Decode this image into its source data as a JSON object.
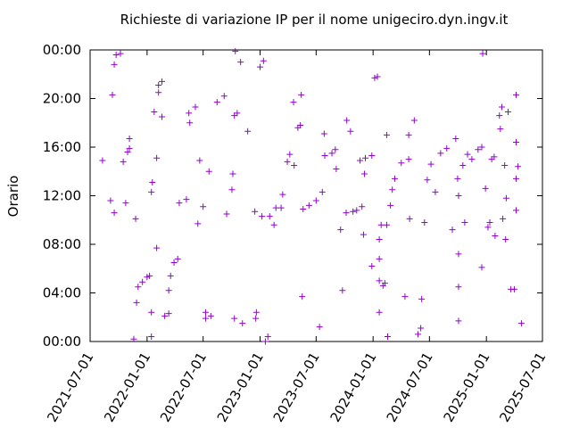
{
  "chart_data": {
    "type": "scatter",
    "title": "Richieste di variazione IP per il nome unigeciro.dyn.ingv.it",
    "ylabel": "Orario",
    "color": "#9400d3",
    "xlim": [
      "2021-07-01",
      "2025-07-01"
    ],
    "xticks": [
      "2021-07-01",
      "2022-01-01",
      "2022-07-01",
      "2023-01-01",
      "2023-07-01",
      "2024-01-01",
      "2024-07-01",
      "2025-01-01",
      "2025-07-01"
    ],
    "ylim": [
      0,
      24
    ],
    "yticks": [
      {
        "value": 0,
        "label": "00:00"
      },
      {
        "value": 4,
        "label": "04:00"
      },
      {
        "value": 8,
        "label": "08:00"
      },
      {
        "value": 12,
        "label": "12:00"
      },
      {
        "value": 16,
        "label": "16:00"
      },
      {
        "value": 20,
        "label": "20:00"
      },
      {
        "value": 24,
        "label": "00:00"
      }
    ],
    "x": [
      "2021-08-10",
      "2021-09-05",
      "2021-09-17",
      "2021-09-11",
      "2021-09-17",
      "2021-09-23",
      "2021-10-07",
      "2021-10-16",
      "2021-10-30",
      "2021-11-05",
      "2021-11-05",
      "2021-10-24",
      "2021-11-19",
      "2021-11-25",
      "2021-11-28",
      "2021-12-03",
      "2021-12-17",
      "2022-01-01",
      "2022-01-09",
      "2022-01-15",
      "2022-01-15",
      "2022-01-18",
      "2022-01-15",
      "2022-01-24",
      "2022-02-01",
      "2022-02-07",
      "2022-02-18",
      "2022-02-07",
      "2022-02-18",
      "2022-02-01",
      "2022-02-27",
      "2022-03-12",
      "2022-03-12",
      "2022-03-18",
      "2022-03-29",
      "2022-04-10",
      "2022-04-15",
      "2022-05-08",
      "2022-05-16",
      "2022-06-06",
      "2022-05-19",
      "2022-06-14",
      "2022-06-20",
      "2022-07-01",
      "2022-07-09",
      "2022-07-26",
      "2022-07-09",
      "2022-07-20",
      "2022-08-15",
      "2022-09-07",
      "2022-09-15",
      "2022-10-02",
      "2022-10-05",
      "2022-10-10",
      "2022-10-19",
      "2022-10-30",
      "2022-10-13",
      "2022-10-10",
      "2022-11-05",
      "2022-11-22",
      "2022-12-15",
      "2022-12-20",
      "2022-12-18",
      "2023-01-01",
      "2023-01-12",
      "2023-01-18",
      "2023-01-26",
      "2023-01-07",
      "2023-02-01",
      "2023-02-15",
      "2023-02-21",
      "2023-03-10",
      "2023-03-15",
      "2023-03-30",
      "2023-04-07",
      "2023-04-21",
      "2023-04-19",
      "2023-05-03",
      "2023-05-11",
      "2023-05-14",
      "2023-05-17",
      "2023-05-20",
      "2023-06-08",
      "2023-07-01",
      "2023-07-21",
      "2023-07-12",
      "2023-07-29",
      "2023-08-21",
      "2023-09-01",
      "2023-07-27",
      "2023-09-04",
      "2023-09-18",
      "2023-09-24",
      "2023-10-06",
      "2023-10-08",
      "2023-10-20",
      "2023-10-28",
      "2023-11-09",
      "2023-11-20",
      "2023-12-07",
      "2023-12-28",
      "2023-11-26",
      "2023-12-01",
      "2023-12-04",
      "2023-12-28",
      "2024-01-06",
      "2024-01-15",
      "2024-01-21",
      "2024-01-21",
      "2024-01-21",
      "2024-01-21",
      "2024-01-27",
      "2024-02-14",
      "2024-02-02",
      "2024-02-08",
      "2024-02-14",
      "2024-02-17",
      "2024-02-26",
      "2024-03-03",
      "2024-03-11",
      "2024-04-01",
      "2024-04-25",
      "2024-04-13",
      "2024-04-28",
      "2024-04-25",
      "2024-05-13",
      "2024-05-25",
      "2024-06-03",
      "2024-06-06",
      "2024-06-15",
      "2024-06-24",
      "2024-07-06",
      "2024-07-20",
      "2024-08-06",
      "2024-08-26",
      "2024-09-24",
      "2024-09-13",
      "2024-09-30",
      "2024-10-03",
      "2024-10-03",
      "2024-10-03",
      "2024-10-03",
      "2024-10-17",
      "2024-11-15",
      "2024-10-23",
      "2024-11-01",
      "2024-12-05",
      "2024-12-17",
      "2024-12-17",
      "2024-12-20",
      "2024-12-29",
      "2025-01-06",
      "2025-01-12",
      "2025-01-18",
      "2025-01-26",
      "2025-01-29",
      "2025-02-12",
      "2025-02-15",
      "2025-02-20",
      "2025-02-23",
      "2025-03-01",
      "2025-03-04",
      "2025-03-06",
      "2025-03-12",
      "2025-03-21",
      "2025-04-01",
      "2025-04-07",
      "2025-04-07",
      "2025-04-07",
      "2025-04-07",
      "2025-04-13",
      "2025-04-24"
    ],
    "values": [
      14.9,
      11.6,
      10.6,
      20.3,
      22.8,
      23.6,
      23.7,
      14.8,
      15.6,
      15.9,
      16.7,
      11.4,
      0.2,
      10.1,
      3.2,
      4.5,
      4.9,
      5.3,
      5.4,
      2.4,
      0.4,
      13.1,
      12.3,
      18.9,
      15.1,
      21.1,
      21.4,
      20.5,
      18.5,
      7.7,
      2.1,
      2.3,
      4.2,
      5.4,
      6.5,
      6.8,
      11.4,
      11.7,
      18.8,
      19.3,
      18.0,
      9.7,
      14.9,
      11.1,
      2.4,
      2.1,
      1.9,
      14.0,
      19.7,
      20.2,
      10.5,
      12.5,
      13.8,
      18.6,
      18.8,
      23.0,
      23.9,
      1.9,
      1.5,
      17.3,
      10.7,
      2.4,
      1.9,
      22.6,
      23.1,
      0.0,
      0.4,
      10.3,
      10.3,
      9.6,
      11.0,
      11.0,
      12.1,
      14.8,
      15.4,
      14.5,
      19.7,
      17.6,
      17.8,
      20.3,
      3.7,
      10.9,
      11.2,
      11.6,
      12.3,
      1.2,
      15.3,
      15.5,
      15.8,
      17.1,
      14.2,
      9.2,
      4.2,
      10.6,
      18.2,
      17.3,
      10.7,
      10.8,
      14.9,
      15.1,
      15.3,
      11.1,
      8.8,
      13.8,
      6.2,
      21.7,
      21.8,
      8.4,
      6.8,
      5.0,
      2.4,
      9.6,
      9.6,
      4.6,
      4.8,
      17.0,
      0.4,
      11.2,
      12.5,
      13.4,
      14.7,
      15.0,
      3.7,
      10.1,
      17.0,
      18.2,
      0.6,
      1.1,
      3.5,
      9.8,
      13.3,
      14.6,
      12.3,
      15.5,
      15.9,
      16.7,
      9.2,
      13.4,
      12.0,
      7.2,
      4.5,
      1.7,
      14.5,
      15.0,
      9.8,
      15.4,
      15.8,
      16.0,
      6.1,
      23.7,
      12.6,
      9.4,
      9.8,
      15.0,
      15.2,
      8.7,
      18.6,
      17.5,
      19.3,
      10.1,
      14.5,
      8.4,
      11.8,
      18.9,
      4.3,
      4.3,
      10.8,
      13.4,
      16.4,
      20.3,
      14.4,
      1.5
    ]
  }
}
